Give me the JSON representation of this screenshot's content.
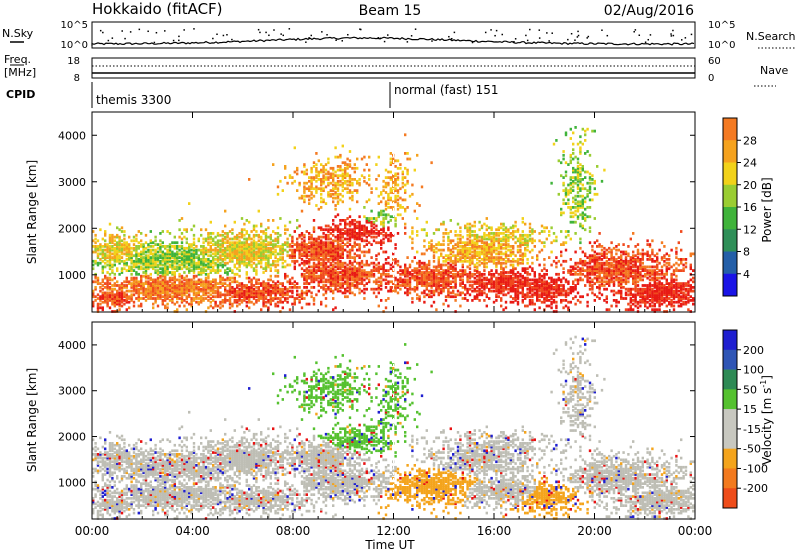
{
  "header": {
    "station": "Hokkaido (fitACF)",
    "beam": "Beam 15",
    "date": "02/Aug/2016"
  },
  "top_panel": {
    "left_label": "N.Sky",
    "right_label": "N.Search",
    "left_ticks": [
      "10^5",
      "10^0"
    ],
    "right_ticks": [
      "10^5",
      "10^0"
    ]
  },
  "freq_panel": {
    "left_label_1": "Freq.",
    "left_label_2": "[MHz]",
    "right_label": "Nave",
    "left_ticks": [
      "18",
      "8"
    ],
    "right_ticks": [
      "60",
      "0"
    ]
  },
  "cpid_panel": {
    "label": "CPID",
    "programs": [
      "themis 3300",
      "normal (fast) 151"
    ]
  },
  "colors": {
    "power_scale": [
      "#1a14e6",
      "#245fa8",
      "#2f8f58",
      "#3fb33a",
      "#9acd32",
      "#f2d21a",
      "#f5a21e",
      "#f47a22",
      "#f04a1e",
      "#e81a14"
    ],
    "velocity_scale": [
      "#1f1fd0",
      "#2f55b5",
      "#2e8a55",
      "#55c12f",
      "#c8c8c0",
      "#c8c8c0",
      "#f4a41c",
      "#f37a1e",
      "#ee4c1a",
      "#e81212"
    ],
    "ground_scatter": "#bebeb5"
  },
  "chart_data": [
    {
      "type": "heatmap",
      "panel": "power",
      "ylabel": "Slant Range [km]",
      "ylim": [
        200,
        4500
      ],
      "yticks": [
        "4000",
        "3000",
        "2000",
        "1000"
      ],
      "xlim": [
        "00:00",
        "24:00"
      ],
      "colorbar_label": "Power [dB]",
      "colorbar_ticks": [
        "28",
        "24",
        "20",
        "16",
        "12",
        "8",
        "4"
      ],
      "colorbar_range": [
        0,
        32
      ]
    },
    {
      "type": "heatmap",
      "panel": "velocity",
      "ylabel": "Slant Range [km]",
      "ylim": [
        200,
        4500
      ],
      "yticks": [
        "4000",
        "3000",
        "2000",
        "1000"
      ],
      "xlabel": "Time UT",
      "xticks": [
        "00:00",
        "04:00",
        "08:00",
        "12:00",
        "16:00",
        "20:00",
        "00:00"
      ],
      "colorbar_label": "Velocity [m s",
      "colorbar_label_sup": "-1",
      "colorbar_label_end": "]",
      "colorbar_ticks": [
        "200",
        "100",
        "50",
        "15",
        "-15",
        "-50",
        "-100",
        "-200"
      ],
      "colorbar_range": [
        -250,
        250
      ]
    }
  ]
}
